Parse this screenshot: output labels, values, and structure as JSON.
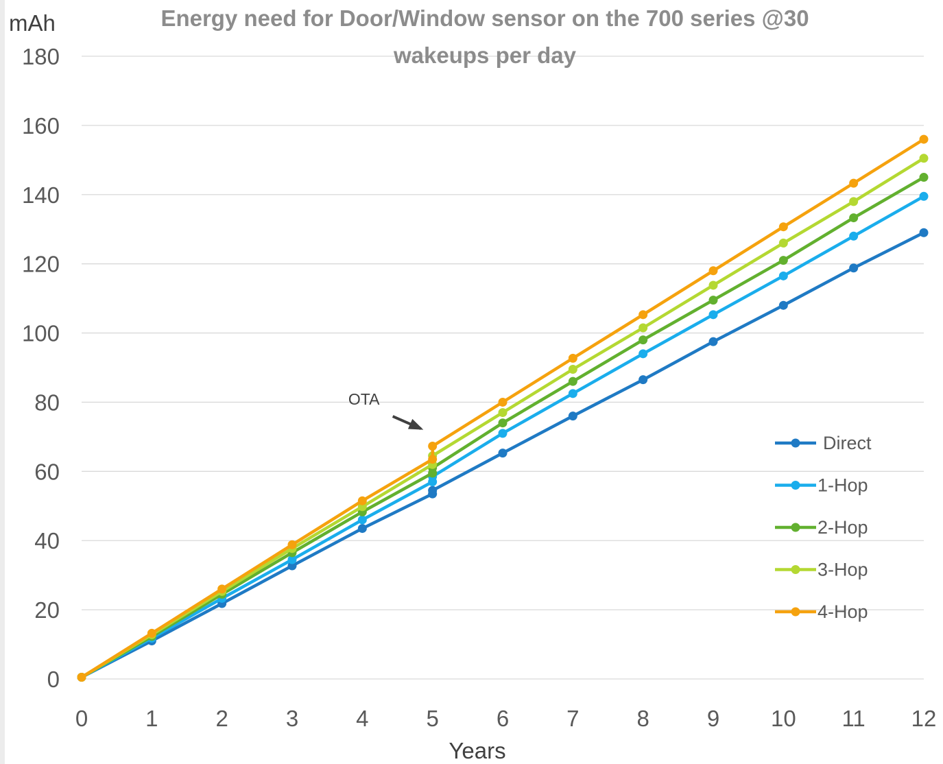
{
  "chart_data": {
    "type": "line",
    "title": "Energy need for Door/Window sensor on the 700 series @30 wakeups per day",
    "title_lines": [
      "Energy need for Door/Window sensor on the 700 series @30",
      "wakeups per day"
    ],
    "xlabel": "Years",
    "ylabel": "mAh",
    "xlim": [
      0,
      12
    ],
    "ylim": [
      0,
      180
    ],
    "x_ticks": [
      0,
      1,
      2,
      3,
      4,
      5,
      6,
      7,
      8,
      9,
      10,
      11,
      12
    ],
    "y_ticks": [
      0,
      20,
      40,
      60,
      80,
      100,
      120,
      140,
      160,
      180
    ],
    "grid": true,
    "legend_position": "right",
    "annotations": [
      {
        "text": "OTA",
        "x": 5,
        "y": 67
      }
    ],
    "series": [
      {
        "name": "Direct",
        "color": "#1f7ac4",
        "points": [
          [
            0,
            0.5
          ],
          [
            1,
            11
          ],
          [
            2,
            21.8
          ],
          [
            3,
            32.7
          ],
          [
            4,
            43.5
          ],
          [
            5,
            53.5
          ],
          [
            5,
            54.5
          ],
          [
            6,
            65.3
          ],
          [
            7,
            76
          ],
          [
            8,
            86.5
          ],
          [
            9,
            97.5
          ],
          [
            10,
            108
          ],
          [
            11,
            118.8
          ],
          [
            12,
            129
          ]
        ]
      },
      {
        "name": "1-Hop",
        "color": "#1aadec",
        "points": [
          [
            0,
            0.5
          ],
          [
            1,
            11.8
          ],
          [
            2,
            23.3
          ],
          [
            3,
            34.5
          ],
          [
            4,
            46
          ],
          [
            5,
            57
          ],
          [
            5,
            58.5
          ],
          [
            6,
            71
          ],
          [
            7,
            82.5
          ],
          [
            8,
            94
          ],
          [
            9,
            105.3
          ],
          [
            10,
            116.5
          ],
          [
            11,
            128
          ],
          [
            12,
            139.5
          ]
        ]
      },
      {
        "name": "2-Hop",
        "color": "#62b02f",
        "points": [
          [
            0,
            0.5
          ],
          [
            1,
            12.3
          ],
          [
            2,
            24.5
          ],
          [
            3,
            36.5
          ],
          [
            4,
            48.3
          ],
          [
            5,
            59.5
          ],
          [
            5,
            61
          ],
          [
            6,
            74
          ],
          [
            7,
            86
          ],
          [
            8,
            98
          ],
          [
            9,
            109.5
          ],
          [
            10,
            121
          ],
          [
            11,
            133.3
          ],
          [
            12,
            145
          ]
        ]
      },
      {
        "name": "3-Hop",
        "color": "#b4d832",
        "points": [
          [
            0,
            0.5
          ],
          [
            1,
            12.8
          ],
          [
            2,
            25.3
          ],
          [
            3,
            37.7
          ],
          [
            4,
            49.8
          ],
          [
            5,
            62
          ],
          [
            5,
            64.5
          ],
          [
            6,
            77
          ],
          [
            7,
            89.5
          ],
          [
            8,
            101.5
          ],
          [
            9,
            113.8
          ],
          [
            10,
            126
          ],
          [
            11,
            138
          ],
          [
            12,
            150.5
          ]
        ]
      },
      {
        "name": "4-Hop",
        "color": "#f5a20e",
        "points": [
          [
            0,
            0.5
          ],
          [
            1,
            13.2
          ],
          [
            2,
            26
          ],
          [
            3,
            38.8
          ],
          [
            4,
            51.5
          ],
          [
            5,
            63.5
          ],
          [
            5,
            67.3
          ],
          [
            6,
            80
          ],
          [
            7,
            92.7
          ],
          [
            8,
            105.3
          ],
          [
            9,
            118
          ],
          [
            10,
            130.7
          ],
          [
            11,
            143.3
          ],
          [
            12,
            156
          ]
        ]
      }
    ]
  }
}
